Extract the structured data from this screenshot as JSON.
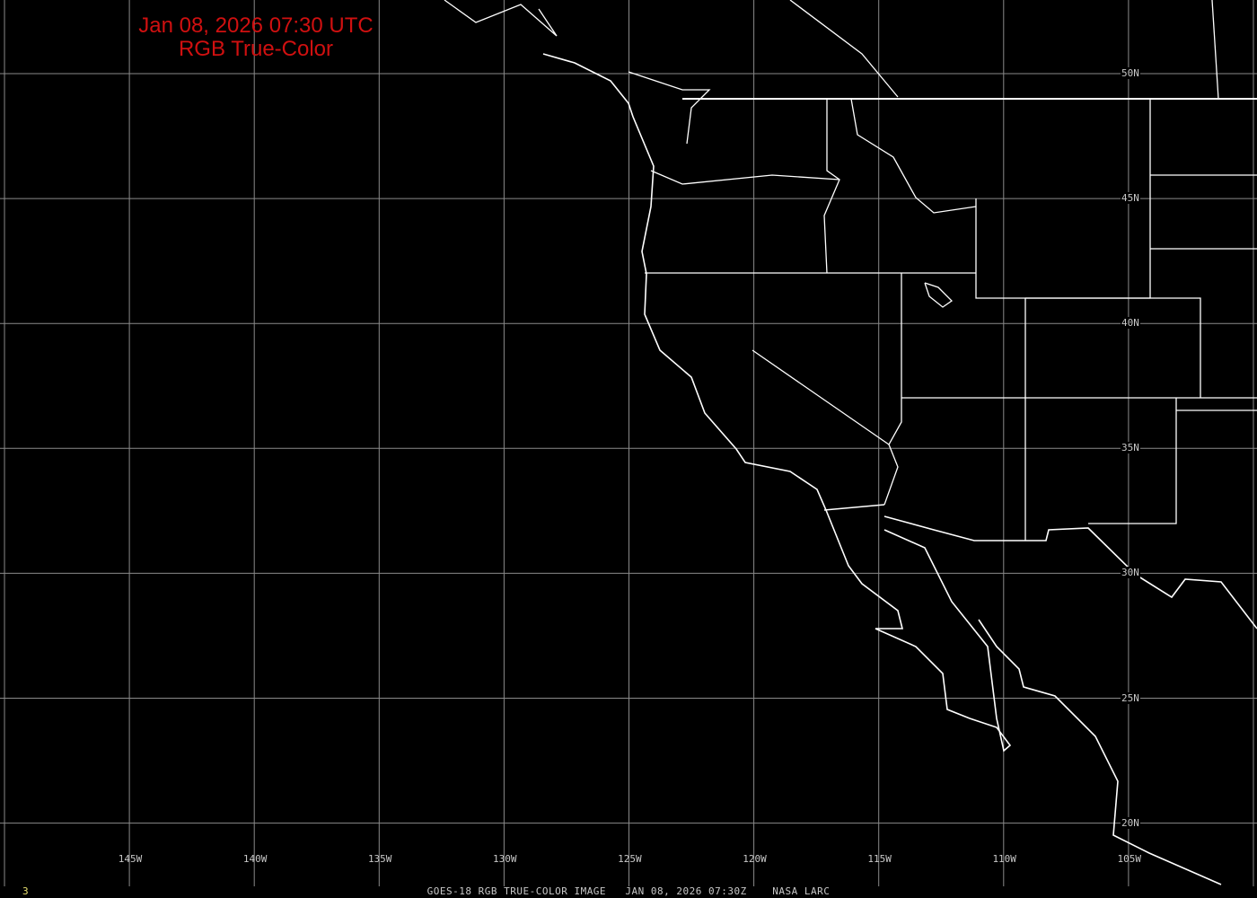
{
  "header": {
    "timestamp": "Jan 08, 2026 07:30 UTC",
    "product": "RGB True-Color"
  },
  "footer": {
    "caption": "GOES-18 RGB TRUE-COLOR IMAGE   JAN 08, 2026 07:30Z    NASA LARC",
    "frame_number": "3"
  },
  "grid": {
    "longitude_labels": [
      "145W",
      "140W",
      "135W",
      "130W",
      "125W",
      "120W",
      "115W",
      "110W",
      "105W"
    ],
    "latitude_labels": [
      "50N",
      "45N",
      "40N",
      "35N",
      "30N",
      "25N",
      "20N"
    ]
  },
  "colors": {
    "background": "#000000",
    "title": "#d01010",
    "grid": "#8a8a8a",
    "boundaries": "#ffffff",
    "caption": "#c8c8c8",
    "frame": "#e8e070"
  }
}
